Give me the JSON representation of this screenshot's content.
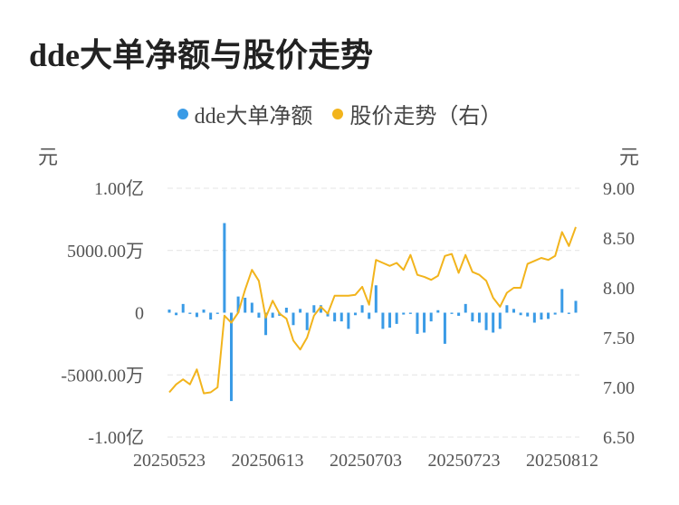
{
  "title": "dde大单净额与股价走势",
  "legend": {
    "left_label": "dde大单净额",
    "right_label": "股价走势（右）"
  },
  "units": {
    "left": "元",
    "right": "元"
  },
  "colors": {
    "bars": "#3a9be6",
    "line": "#f2b41c",
    "grid": "#e4e4e4"
  },
  "chart_data": {
    "type": "bar+line",
    "title": "dde大单净额与股价走势",
    "x_tick_labels": [
      "20250523",
      "20250613",
      "20250703",
      "20250723",
      "20250812"
    ],
    "y_left": {
      "ticks": [
        100000000,
        50000000,
        0,
        -50000000,
        -100000000
      ],
      "tick_labels": [
        "1.00亿",
        "5000.00万",
        "0",
        "-5000.00万",
        "-1.00亿"
      ],
      "range": [
        -100000000,
        100000000
      ]
    },
    "y_right": {
      "ticks": [
        9.0,
        8.5,
        8.0,
        7.5,
        7.0,
        6.5
      ],
      "tick_labels": [
        "9.00",
        "8.50",
        "8.00",
        "7.50",
        "7.00",
        "6.50"
      ],
      "range": [
        6.5,
        9.0
      ]
    },
    "series": [
      {
        "name": "dde大单净额",
        "axis": "left",
        "type": "bar",
        "values": [
          2500000,
          -2000000,
          7000000,
          -1000000,
          -3500000,
          2500000,
          -5500000,
          -1000000,
          72000000,
          -71000000,
          13000000,
          12000000,
          8000000,
          -4000000,
          -18000000,
          -4000000,
          -2500000,
          4000000,
          -10000000,
          3000000,
          -14000000,
          6000000,
          6000000,
          -3000000,
          -7000000,
          -7000000,
          -13000000,
          -2000000,
          6000000,
          -5000000,
          22000000,
          -13000000,
          -12000000,
          -9000000,
          -1500000,
          -1000000,
          -17000000,
          -16000000,
          -7000000,
          2000000,
          -25000000,
          -1000000,
          -2500000,
          7000000,
          -7000000,
          -8000000,
          -14000000,
          -16000000,
          -13000000,
          6000000,
          3000000,
          -2000000,
          -3000000,
          -8000000,
          -5500000,
          -5000000,
          -1500000,
          19000000,
          -1000000,
          9500000
        ]
      },
      {
        "name": "股价走势（右）",
        "axis": "right",
        "type": "line",
        "values": [
          6.95,
          7.03,
          7.08,
          7.03,
          7.18,
          6.94,
          6.95,
          7.0,
          7.72,
          7.65,
          7.75,
          7.98,
          8.18,
          8.07,
          7.7,
          7.87,
          7.74,
          7.69,
          7.47,
          7.38,
          7.5,
          7.72,
          7.81,
          7.74,
          7.92,
          7.92,
          7.92,
          7.93,
          8.01,
          7.83,
          8.28,
          8.25,
          8.22,
          8.25,
          8.18,
          8.33,
          8.13,
          8.11,
          8.08,
          8.12,
          8.32,
          8.34,
          8.15,
          8.33,
          8.16,
          8.13,
          8.07,
          7.9,
          7.81,
          7.95,
          8.0,
          8.0,
          8.24,
          8.27,
          8.3,
          8.28,
          8.32,
          8.56,
          8.42,
          8.61
        ]
      }
    ],
    "grid": true,
    "legend_position": "top-center"
  }
}
